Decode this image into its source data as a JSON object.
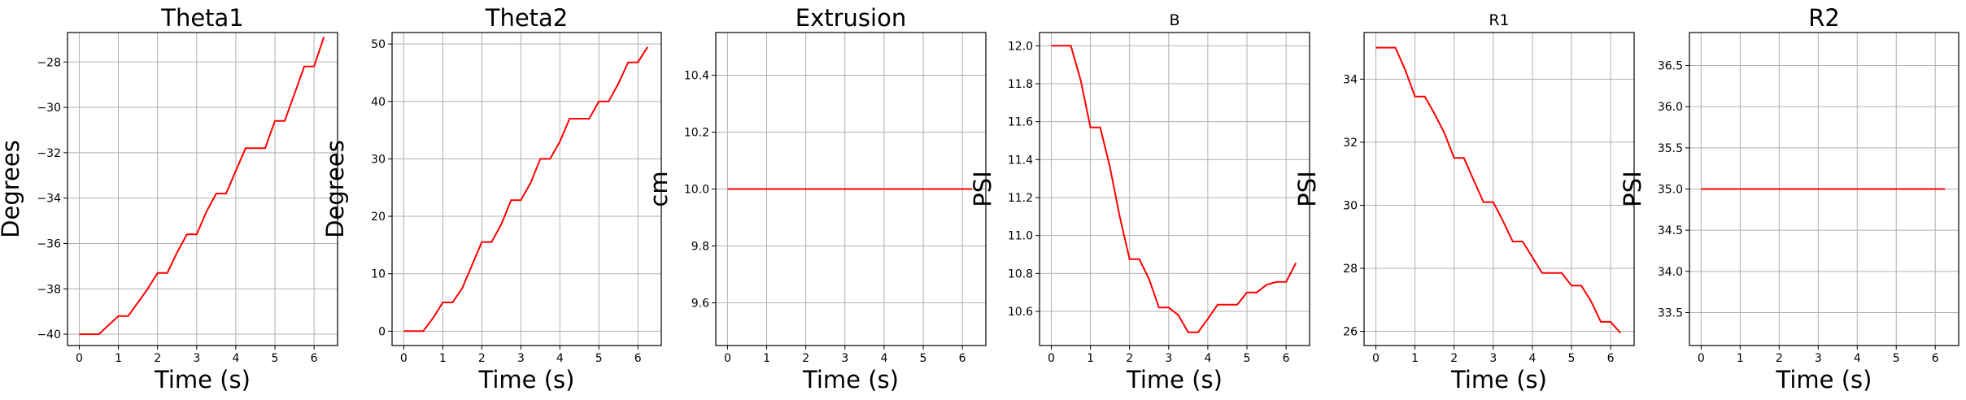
{
  "figure": {
    "background": "#ffffff",
    "line_color": "#ff0000",
    "grid": true
  },
  "chart_data": [
    {
      "type": "line",
      "title": "Theta1",
      "xlabel": "Time (s)",
      "ylabel": "Degrees",
      "xlim": [
        -0.3,
        6.6
      ],
      "ylim": [
        -40.5,
        -26.7
      ],
      "xticks": [
        0,
        1,
        2,
        3,
        4,
        5,
        6
      ],
      "yticks": [
        -40,
        -38,
        -36,
        -34,
        -32,
        -30,
        -28
      ],
      "x": [
        0,
        0.5,
        0.75,
        1.0,
        1.25,
        1.5,
        1.75,
        2.0,
        2.25,
        2.5,
        2.75,
        3.0,
        3.25,
        3.5,
        3.75,
        4.0,
        4.25,
        4.5,
        4.75,
        5.0,
        5.25,
        5.5,
        5.75,
        6.0,
        6.25
      ],
      "series": [
        {
          "values": [
            -40.0,
            -40.0,
            -39.6,
            -39.2,
            -39.2,
            -38.6,
            -38.0,
            -37.3,
            -37.3,
            -36.4,
            -35.6,
            -35.6,
            -34.6,
            -33.8,
            -33.8,
            -32.8,
            -31.8,
            -31.8,
            -31.8,
            -30.6,
            -30.6,
            -29.4,
            -28.2,
            -28.2,
            -26.9
          ]
        }
      ]
    },
    {
      "type": "line",
      "title": "Theta2",
      "xlabel": "Time (s)",
      "ylabel": "Degrees",
      "xlim": [
        -0.3,
        6.6
      ],
      "ylim": [
        -2.5,
        52
      ],
      "xticks": [
        0,
        1,
        2,
        3,
        4,
        5,
        6
      ],
      "yticks": [
        0,
        10,
        20,
        30,
        40,
        50
      ],
      "x": [
        0,
        0.5,
        0.75,
        1.0,
        1.25,
        1.5,
        1.75,
        2.0,
        2.25,
        2.5,
        2.75,
        3.0,
        3.25,
        3.5,
        3.75,
        4.0,
        4.25,
        4.5,
        4.75,
        5.0,
        5.25,
        5.5,
        5.75,
        6.0,
        6.25
      ],
      "series": [
        {
          "values": [
            0.0,
            0.0,
            2.3,
            5.0,
            5.0,
            7.5,
            11.5,
            15.5,
            15.5,
            18.6,
            22.8,
            22.8,
            25.8,
            30.0,
            30.0,
            33.0,
            37.0,
            37.0,
            37.0,
            40.0,
            40.0,
            43.1,
            46.8,
            46.8,
            49.5
          ]
        }
      ]
    },
    {
      "type": "line",
      "title": "Extrusion",
      "xlabel": "Time (s)",
      "ylabel": "cm",
      "xlim": [
        -0.3,
        6.6
      ],
      "ylim": [
        9.45,
        10.55
      ],
      "xticks": [
        0,
        1,
        2,
        3,
        4,
        5,
        6
      ],
      "yticks": [
        9.6,
        9.8,
        10.0,
        10.2,
        10.4
      ],
      "x": [
        0,
        6.25
      ],
      "series": [
        {
          "values": [
            10.0,
            10.0
          ]
        }
      ]
    },
    {
      "type": "line",
      "title": "B",
      "xlabel": "Time (s)",
      "ylabel": "PSI",
      "xlim": [
        -0.3,
        6.6
      ],
      "ylim": [
        10.42,
        12.07
      ],
      "xticks": [
        0,
        1,
        2,
        3,
        4,
        5,
        6
      ],
      "yticks": [
        10.6,
        10.8,
        11.0,
        11.2,
        11.4,
        11.6,
        11.8,
        12.0
      ],
      "x": [
        0,
        0.5,
        0.75,
        1.0,
        1.25,
        1.5,
        1.75,
        2.0,
        2.25,
        2.5,
        2.75,
        3.0,
        3.25,
        3.5,
        3.75,
        4.0,
        4.25,
        4.5,
        4.75,
        5.0,
        5.25,
        5.5,
        5.75,
        6.0,
        6.25
      ],
      "series": [
        {
          "values": [
            12.0,
            12.0,
            11.82,
            11.57,
            11.57,
            11.36,
            11.1,
            10.875,
            10.875,
            10.77,
            10.62,
            10.62,
            10.58,
            10.49,
            10.49,
            10.56,
            10.635,
            10.635,
            10.635,
            10.7,
            10.7,
            10.74,
            10.755,
            10.755,
            10.855
          ]
        }
      ]
    },
    {
      "type": "line",
      "title": "R1",
      "xlabel": "Time (s)",
      "ylabel": "PSI",
      "xlim": [
        -0.3,
        6.6
      ],
      "ylim": [
        25.55,
        35.48
      ],
      "xticks": [
        0,
        1,
        2,
        3,
        4,
        5,
        6
      ],
      "yticks": [
        26,
        28,
        30,
        32,
        34
      ],
      "x": [
        0,
        0.5,
        0.75,
        1.0,
        1.25,
        1.5,
        1.75,
        2.0,
        2.25,
        2.5,
        2.75,
        3.0,
        3.25,
        3.5,
        3.75,
        4.0,
        4.25,
        4.5,
        4.75,
        5.0,
        5.25,
        5.5,
        5.75,
        6.0,
        6.25
      ],
      "series": [
        {
          "values": [
            35.0,
            35.0,
            34.3,
            33.45,
            33.45,
            32.9,
            32.3,
            31.5,
            31.5,
            30.8,
            30.1,
            30.1,
            29.5,
            28.85,
            28.85,
            28.35,
            27.85,
            27.85,
            27.85,
            27.45,
            27.45,
            26.95,
            26.3,
            26.3,
            25.95
          ]
        }
      ]
    },
    {
      "type": "line",
      "title": "R2",
      "xlabel": "Time (s)",
      "ylabel": "PSI",
      "xlim": [
        -0.3,
        6.6
      ],
      "ylim": [
        33.1,
        36.9
      ],
      "xticks": [
        0,
        1,
        2,
        3,
        4,
        5,
        6
      ],
      "yticks": [
        33.5,
        34.0,
        34.5,
        35.0,
        35.5,
        36.0,
        36.5
      ],
      "x": [
        0,
        6.25
      ],
      "series": [
        {
          "values": [
            35.0,
            35.0
          ]
        }
      ]
    }
  ]
}
